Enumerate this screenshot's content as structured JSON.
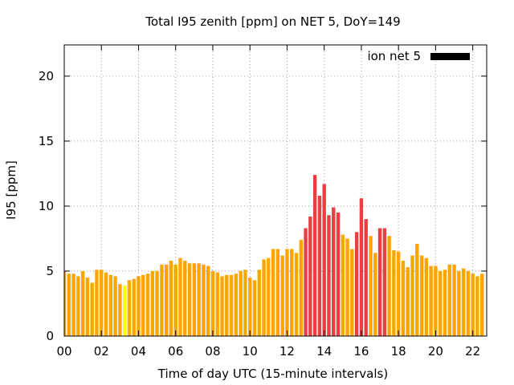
{
  "chart_data": {
    "type": "bar",
    "title": "Total I95 zenith [ppm] on NET 5, DoY=149",
    "xlabel": "Time of day UTC (15-minute intervals)",
    "ylabel": "I95 [ppm]",
    "xlim": [
      0,
      22.75
    ],
    "ylim": [
      0,
      22.4
    ],
    "xticks": [
      "00",
      "02",
      "04",
      "06",
      "08",
      "10",
      "12",
      "14",
      "16",
      "18",
      "20",
      "22"
    ],
    "yticks": [
      "0",
      "5",
      "10",
      "15",
      "20"
    ],
    "grid": true,
    "legend": {
      "label": "ion net 5",
      "color": "#000000",
      "placement": "top-right"
    },
    "interval_hours": 0.25,
    "colors": {
      "normal": "#ffa500",
      "high": "#e84040",
      "low": "#ffff00"
    },
    "values": [
      5.0,
      4.8,
      4.8,
      4.6,
      5.0,
      4.5,
      4.1,
      5.1,
      5.1,
      4.9,
      4.7,
      4.6,
      4.0,
      3.9,
      4.3,
      4.4,
      4.6,
      4.7,
      4.8,
      5.0,
      5.0,
      5.5,
      5.5,
      5.8,
      5.5,
      6.0,
      5.8,
      5.6,
      5.6,
      5.6,
      5.5,
      5.4,
      5.0,
      4.9,
      4.6,
      4.7,
      4.7,
      4.8,
      5.0,
      5.1,
      4.5,
      4.3,
      5.1,
      5.9,
      6.0,
      6.7,
      6.7,
      6.2,
      6.7,
      6.7,
      6.4,
      7.4,
      8.3,
      9.2,
      12.4,
      10.8,
      11.7,
      9.3,
      9.9,
      9.5,
      7.8,
      7.5,
      6.7,
      8.0,
      10.6,
      9.0,
      7.7,
      6.4,
      8.3,
      8.3,
      7.7,
      6.6,
      6.5,
      5.8,
      5.3,
      6.2,
      7.1,
      6.2,
      6.0,
      5.4,
      5.4,
      5.0,
      5.1,
      5.5,
      5.5,
      5.0,
      5.2,
      5.0,
      4.8,
      4.6,
      4.8
    ],
    "bar_colors": [
      "normal",
      "normal",
      "normal",
      "normal",
      "normal",
      "normal",
      "normal",
      "normal",
      "normal",
      "normal",
      "normal",
      "normal",
      "normal",
      "low",
      "normal",
      "normal",
      "normal",
      "normal",
      "normal",
      "normal",
      "normal",
      "normal",
      "normal",
      "normal",
      "normal",
      "normal",
      "normal",
      "normal",
      "normal",
      "normal",
      "normal",
      "normal",
      "normal",
      "normal",
      "normal",
      "normal",
      "normal",
      "normal",
      "normal",
      "normal",
      "normal",
      "normal",
      "normal",
      "normal",
      "normal",
      "normal",
      "normal",
      "normal",
      "normal",
      "normal",
      "normal",
      "normal",
      "high",
      "high",
      "high",
      "high",
      "high",
      "high",
      "high",
      "high",
      "normal",
      "normal",
      "normal",
      "high",
      "high",
      "high",
      "normal",
      "normal",
      "high",
      "high",
      "normal",
      "normal",
      "normal",
      "normal",
      "normal",
      "normal",
      "normal",
      "normal",
      "normal",
      "normal",
      "normal",
      "normal",
      "normal",
      "normal",
      "normal",
      "normal",
      "normal",
      "normal",
      "normal",
      "normal",
      "normal"
    ]
  }
}
